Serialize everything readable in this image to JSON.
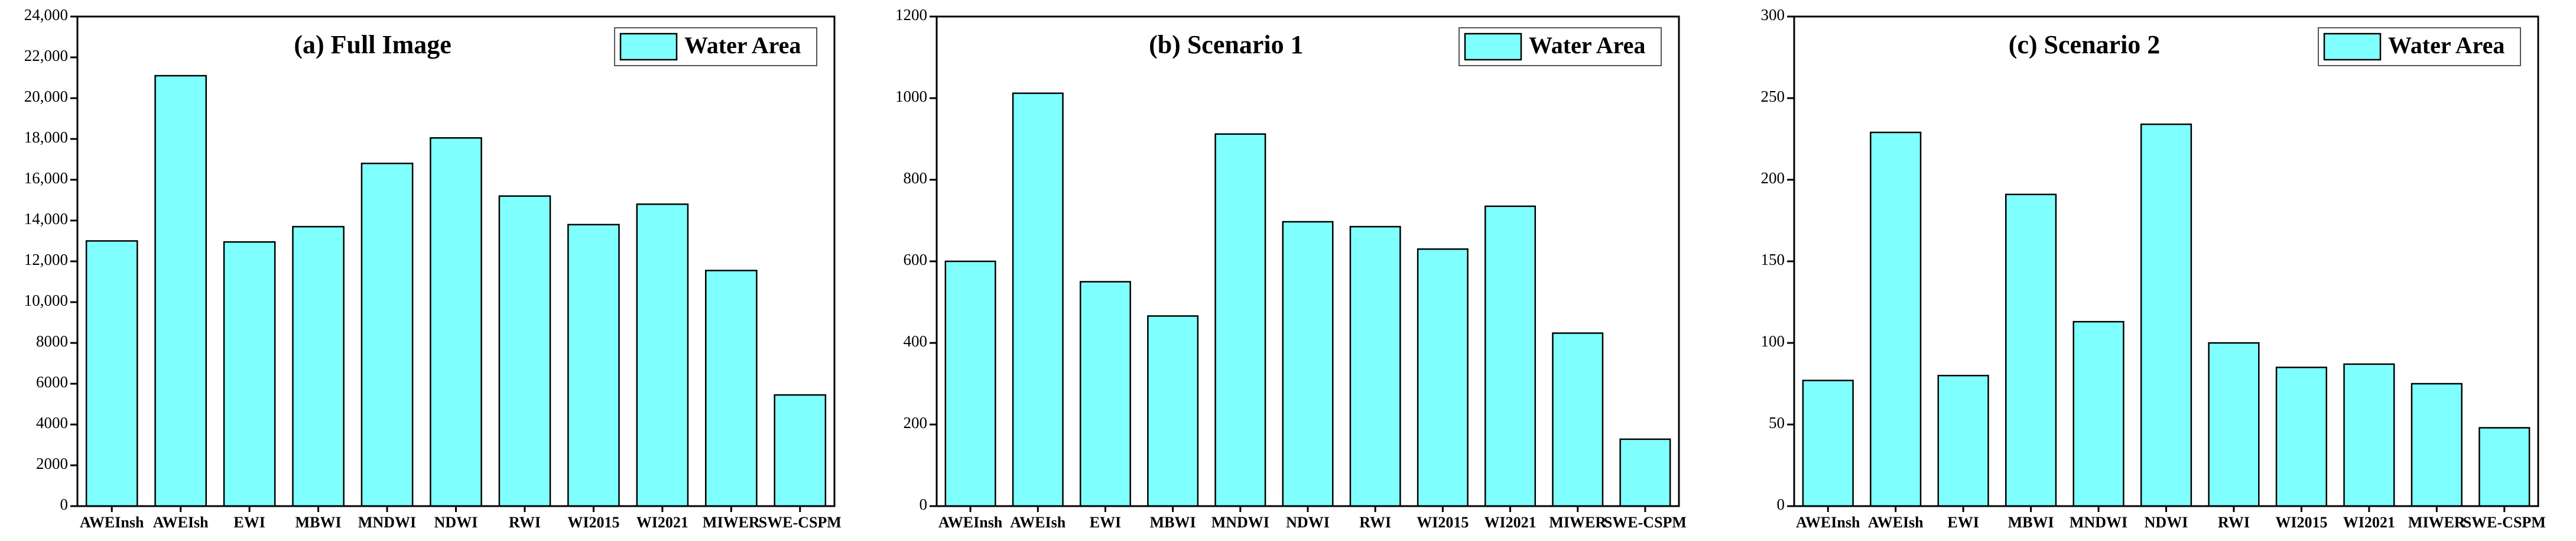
{
  "chart_data": [
    {
      "type": "bar",
      "title": "(a) Full Image",
      "categories": [
        "AWEInsh",
        "AWEIsh",
        "EWI",
        "MBWI",
        "MNDWI",
        "NDWI",
        "RWI",
        "WI2015",
        "WI2021",
        "MIWER",
        "SWE-CSPM"
      ],
      "series": [
        {
          "name": "Water Area",
          "color": "#80ffff",
          "values": [
            13000,
            21100,
            12950,
            13700,
            16800,
            18050,
            15200,
            13800,
            14800,
            11550,
            5450
          ]
        }
      ],
      "ylim": [
        0,
        24000
      ],
      "yticks": [
        0,
        2000,
        4000,
        6000,
        8000,
        {
          "value": 10000,
          "label": "10,000"
        },
        {
          "value": 12000,
          "label": "12,000"
        },
        {
          "value": 14000,
          "label": "14,000"
        },
        {
          "value": 16000,
          "label": "16,000"
        },
        {
          "value": 18000,
          "label": "18,000"
        },
        {
          "value": 20000,
          "label": "20,000"
        },
        {
          "value": 22000,
          "label": "22,000"
        },
        {
          "value": 24000,
          "label": "24,000"
        }
      ],
      "legend": "upper right"
    },
    {
      "type": "bar",
      "title": "(b) Scenario 1",
      "categories": [
        "AWEInsh",
        "AWEIsh",
        "EWI",
        "MBWI",
        "MNDWI",
        "NDWI",
        "RWI",
        "WI2015",
        "WI2021",
        "MIWER",
        "SWE-CSPM"
      ],
      "series": [
        {
          "name": "Water Area",
          "color": "#80ffff",
          "values": [
            600,
            1012,
            550,
            466,
            912,
            697,
            685,
            630,
            735,
            424,
            164
          ]
        }
      ],
      "ylim": [
        0,
        1200
      ],
      "yticks": [
        0,
        200,
        400,
        600,
        800,
        1000,
        1200
      ],
      "legend": "upper right"
    },
    {
      "type": "bar",
      "title": "(c) Scenario 2",
      "categories": [
        "AWEInsh",
        "AWEIsh",
        "EWI",
        "MBWI",
        "MNDWI",
        "NDWI",
        "RWI",
        "WI2015",
        "WI2021",
        "MIWER",
        "SWE-CSPM"
      ],
      "series": [
        {
          "name": "Water Area",
          "color": "#80ffff",
          "values": [
            77,
            229,
            80,
            191,
            113,
            234,
            100,
            85,
            87,
            75,
            48
          ]
        }
      ],
      "ylim": [
        0,
        300
      ],
      "yticks": [
        0,
        50,
        100,
        150,
        200,
        250,
        300
      ],
      "legend": "upper right"
    }
  ]
}
